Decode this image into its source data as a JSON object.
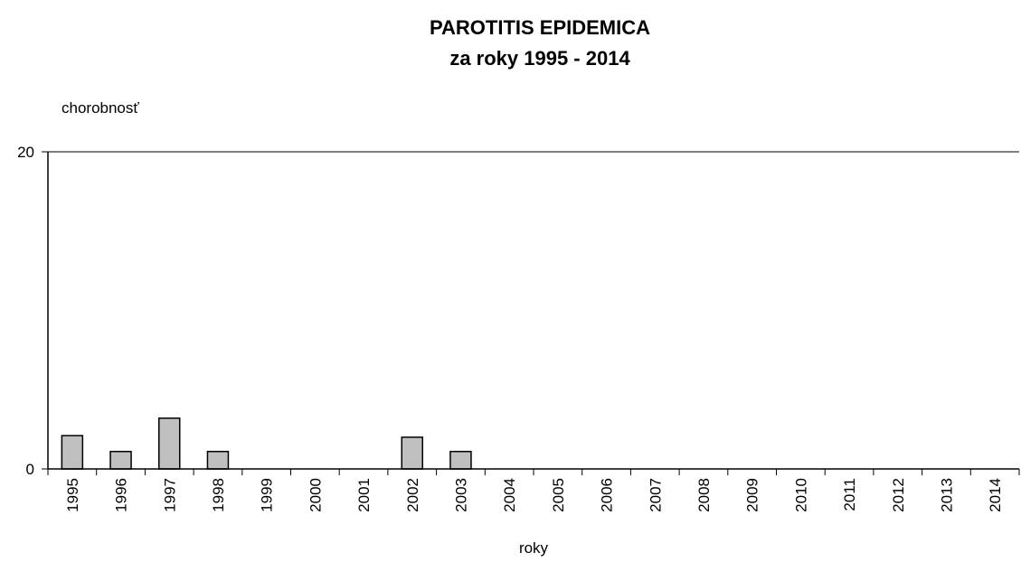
{
  "chart_data": {
    "type": "bar",
    "title": "PAROTITIS  EPIDEMICA",
    "subtitle": "za roky 1995 - 2014",
    "y_label": "chorobnosť",
    "x_label": "roky",
    "categories": [
      "1995",
      "1996",
      "1997",
      "1998",
      "1999",
      "2000",
      "2001",
      "2002",
      "2003",
      "2004",
      "2005",
      "2006",
      "2007",
      "2008",
      "2009",
      "2010",
      "2011",
      "2012",
      "2013",
      "2014"
    ],
    "values": [
      2.1,
      1.1,
      3.2,
      1.1,
      0,
      0,
      0,
      2.0,
      1.1,
      0,
      0,
      0,
      0,
      0,
      0,
      0,
      0,
      0,
      0,
      0
    ],
    "color": "#c0c0c0",
    "ylim": [
      0,
      20
    ],
    "yticks": [
      0,
      20
    ],
    "grid": true
  }
}
